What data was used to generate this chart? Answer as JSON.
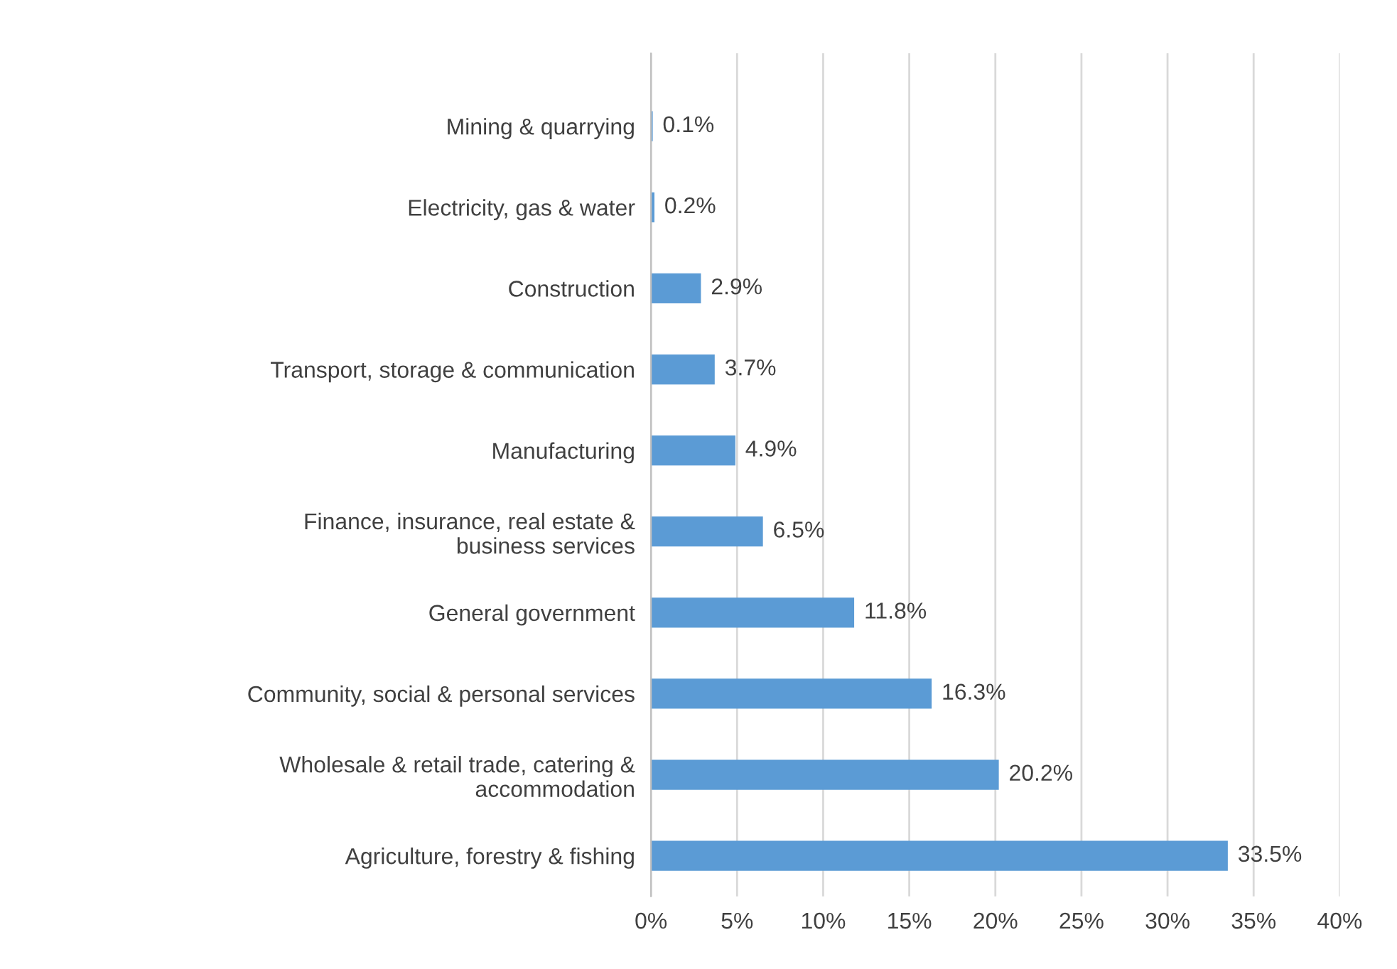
{
  "chart_data": {
    "type": "bar",
    "orientation": "horizontal",
    "categories": [
      "Mining & quarrying",
      "Electricity, gas & water",
      "Construction",
      "Transport, storage & communication",
      "Manufacturing",
      "Finance, insurance, real estate &\nbusiness services",
      "General government",
      "Community, social & personal services",
      "Wholesale & retail trade, catering &\naccommodation",
      "Agriculture, forestry & fishing"
    ],
    "values": [
      0.1,
      0.2,
      2.9,
      3.7,
      4.9,
      6.5,
      11.8,
      16.3,
      20.2,
      33.5
    ],
    "value_labels": [
      "0.1%",
      "0.2%",
      "2.9%",
      "3.7%",
      "4.9%",
      "6.5%",
      "11.8%",
      "16.3%",
      "20.2%",
      "33.5%"
    ],
    "color": "#5b9bd5",
    "xlim": [
      0,
      40
    ],
    "xticks": [
      {
        "value": 0,
        "label": "0%"
      },
      {
        "value": 5,
        "label": "5%"
      },
      {
        "value": 10,
        "label": "10%"
      },
      {
        "value": 15,
        "label": "15%"
      },
      {
        "value": 20,
        "label": "20%"
      },
      {
        "value": 25,
        "label": "25%"
      },
      {
        "value": 30,
        "label": "30%"
      },
      {
        "value": 35,
        "label": "35%"
      },
      {
        "value": 40,
        "label": "40%"
      }
    ],
    "grid": "x",
    "legend": false
  }
}
